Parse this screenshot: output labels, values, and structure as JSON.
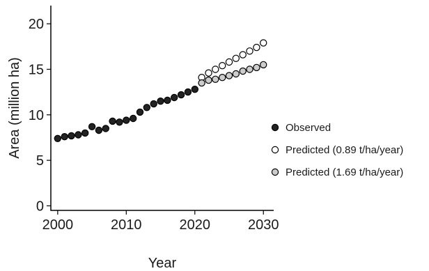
{
  "chart_data": {
    "type": "scatter",
    "xlabel": "Year",
    "ylabel": "Area (million ha)",
    "xlim": [
      1999,
      2031.5
    ],
    "ylim": [
      -0.5,
      22
    ],
    "xticks": [
      2000,
      2010,
      2020,
      2030
    ],
    "yticks": [
      0,
      5,
      10,
      15,
      20
    ],
    "grid": false,
    "legend_position": "right",
    "series": [
      {
        "name": "Observed",
        "marker": "filled",
        "fill": "#222222",
        "x": [
          2000,
          2001,
          2002,
          2003,
          2004,
          2005,
          2006,
          2007,
          2008,
          2009,
          2010,
          2011,
          2012,
          2013,
          2014,
          2015,
          2016,
          2017,
          2018,
          2019,
          2020
        ],
        "y": [
          7.4,
          7.6,
          7.7,
          7.8,
          8.0,
          8.7,
          8.3,
          8.5,
          9.3,
          9.2,
          9.4,
          9.6,
          10.3,
          10.8,
          11.2,
          11.5,
          11.6,
          11.9,
          12.2,
          12.5,
          12.8
        ]
      },
      {
        "name": "Predicted (0.89 t/ha/year)",
        "marker": "hollow",
        "fill": "#ffffff",
        "x": [
          2021,
          2022,
          2023,
          2024,
          2025,
          2026,
          2027,
          2028,
          2029,
          2030
        ],
        "y": [
          14.1,
          14.6,
          15.0,
          15.4,
          15.8,
          16.2,
          16.6,
          17.0,
          17.4,
          17.9
        ]
      },
      {
        "name": "Predicted (1.69 t/ha/year)",
        "marker": "hollow-grey",
        "fill": "#cccccc",
        "x": [
          2021,
          2022,
          2023,
          2024,
          2025,
          2026,
          2027,
          2028,
          2029,
          2030
        ],
        "y": [
          13.5,
          13.8,
          13.9,
          14.1,
          14.3,
          14.5,
          14.8,
          15.0,
          15.2,
          15.5
        ]
      }
    ]
  }
}
